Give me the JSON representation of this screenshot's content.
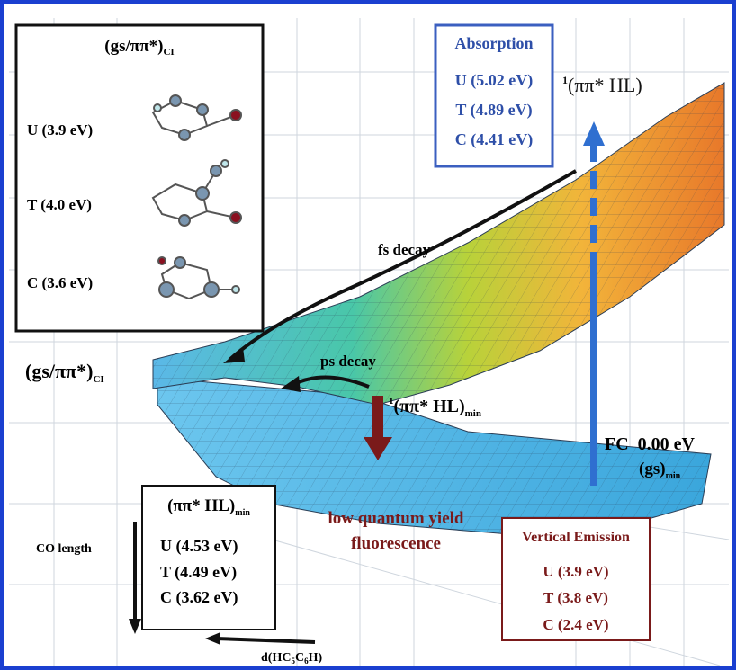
{
  "ci_box": {
    "title": {
      "main": "(gs/ππ*)",
      "sub": "CI"
    },
    "items": [
      "U (3.9 eV)",
      "T (4.0 eV)",
      "C (3.6 eV)"
    ]
  },
  "absorption_box": {
    "title": "Absorption",
    "items": [
      "U (5.02 eV)",
      "T (4.89 eV)",
      "C (4.41 eV)"
    ]
  },
  "labels": {
    "pp_hl": {
      "sup": "1",
      "main": "(ππ* HL)"
    },
    "fs_decay": "fs decay",
    "ps_decay": "ps decay",
    "ci": {
      "main": "(gs/ππ*)",
      "sub": "CI"
    },
    "pp_hl_min": {
      "sup": "1",
      "main": "(ππ* HL)",
      "sub": "min"
    },
    "fc": "FC  0.00 eV",
    "gs_min": {
      "main": "(gs)",
      "sub": "min"
    },
    "fluorescence": [
      "low quantum yield",
      "fluorescence"
    ],
    "co_length": "CO length",
    "d_axis": {
      "parts": [
        "d(HC",
        "5",
        "C",
        "6",
        "H)"
      ]
    }
  },
  "min_box": {
    "title": {
      "main": "(ππ* HL)",
      "sub": "min"
    },
    "items": [
      "U (4.53 eV)",
      "T (4.49 eV)",
      "C (3.62 eV)"
    ]
  },
  "emission_box": {
    "title": "Vertical Emission",
    "items": [
      "U (3.9 eV)",
      "T (3.8 eV)",
      "C (2.4 eV)"
    ]
  }
}
